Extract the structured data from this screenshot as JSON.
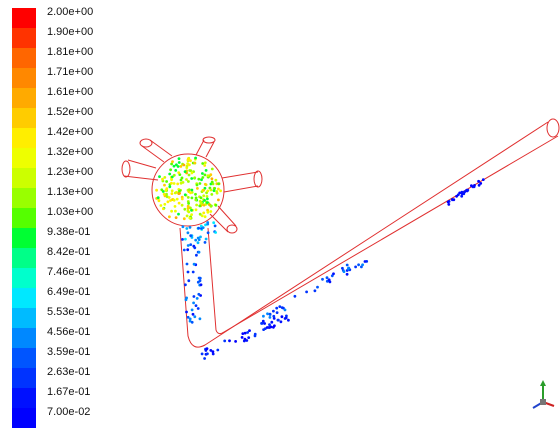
{
  "legend": {
    "labels": [
      "2.00e+00",
      "1.90e+00",
      "1.81e+00",
      "1.71e+00",
      "1.61e+00",
      "1.52e+00",
      "1.42e+00",
      "1.32e+00",
      "1.23e+00",
      "1.13e+00",
      "1.03e+00",
      "9.38e-01",
      "8.42e-01",
      "7.46e-01",
      "6.49e-01",
      "5.53e-01",
      "4.56e-01",
      "3.59e-01",
      "2.63e-01",
      "1.67e-01",
      "7.00e-02"
    ],
    "colors": [
      "#ff0000",
      "#ff3300",
      "#ff6600",
      "#ff8800",
      "#ffaa00",
      "#ffcc00",
      "#ffee00",
      "#eeff00",
      "#ccff00",
      "#99ff00",
      "#55ff00",
      "#00ff33",
      "#00ff88",
      "#00ffcc",
      "#00e8ff",
      "#00bbff",
      "#0088ff",
      "#0055ff",
      "#0033ff",
      "#0010ff",
      "#0000ff"
    ]
  },
  "scene": {
    "outline_color": "#e03030",
    "particles": [
      {
        "region": "hub",
        "count": 220,
        "velocity_min": 0.9,
        "velocity_max": 1.6
      },
      {
        "region": "hub-outlet",
        "count": 30,
        "velocity_min": 0.3,
        "velocity_max": 0.7
      },
      {
        "region": "downcomer",
        "count": 40,
        "velocity_min": 0.15,
        "velocity_max": 0.5
      },
      {
        "region": "bend",
        "count": 45,
        "velocity_min": 0.07,
        "velocity_max": 0.3
      },
      {
        "region": "incline-lower",
        "count": 35,
        "velocity_min": 0.15,
        "velocity_max": 0.5
      },
      {
        "region": "incline-mid",
        "count": 10,
        "velocity_min": 0.2,
        "velocity_max": 0.5
      },
      {
        "region": "incline-upper",
        "count": 25,
        "velocity_min": 0.07,
        "velocity_max": 0.2
      }
    ]
  }
}
